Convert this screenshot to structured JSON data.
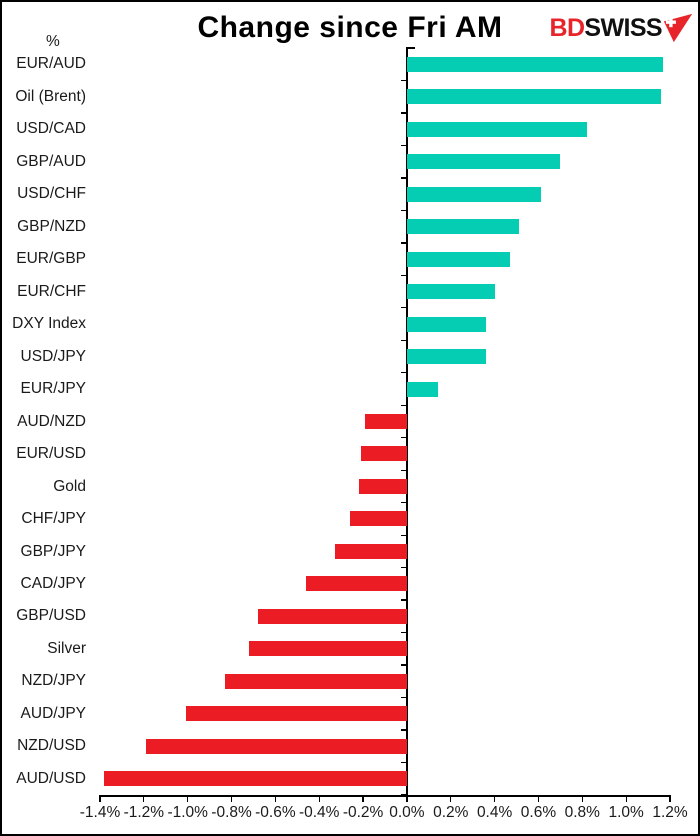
{
  "header": {
    "title": "Change since Fri AM",
    "unit_label": "%",
    "logo": {
      "text_red": "BD",
      "text_black": "SWISS",
      "icon": "swiss-arrow-icon"
    }
  },
  "colors": {
    "positive_bar": "#04CDB4",
    "negative_bar": "#EC1C24",
    "logo_red": "#E8242B",
    "axis": "#000000",
    "text": "#1A1A1A"
  },
  "chart_data": {
    "type": "bar",
    "orientation": "horizontal",
    "title": "Change since Fri AM",
    "value_unit": "%",
    "grid": false,
    "legend": null,
    "xlim": [
      -1.4,
      1.2
    ],
    "xtick_labels": [
      "-1.4%",
      "-1.2%",
      "-1.0%",
      "-0.8%",
      "-0.6%",
      "-0.4%",
      "-0.2%",
      "0.0%",
      "0.2%",
      "0.4%",
      "0.6%",
      "0.8%",
      "1.0%",
      "1.2%"
    ],
    "categories": [
      "EUR/AUD",
      "Oil (Brent)",
      "USD/CAD",
      "GBP/AUD",
      "USD/CHF",
      "GBP/NZD",
      "EUR/GBP",
      "EUR/CHF",
      "DXY Index",
      "USD/JPY",
      "EUR/JPY",
      "AUD/NZD",
      "EUR/USD",
      "Gold",
      "CHF/JPY",
      "GBP/JPY",
      "CAD/JPY",
      "GBP/USD",
      "Silver",
      "NZD/JPY",
      "AUD/JPY",
      "NZD/USD",
      "AUD/USD"
    ],
    "values": [
      1.17,
      1.16,
      0.82,
      0.7,
      0.61,
      0.51,
      0.47,
      0.4,
      0.36,
      0.36,
      0.14,
      -0.19,
      -0.21,
      -0.22,
      -0.26,
      -0.33,
      -0.46,
      -0.68,
      -0.72,
      -0.83,
      -1.01,
      -1.19,
      -1.38
    ]
  }
}
